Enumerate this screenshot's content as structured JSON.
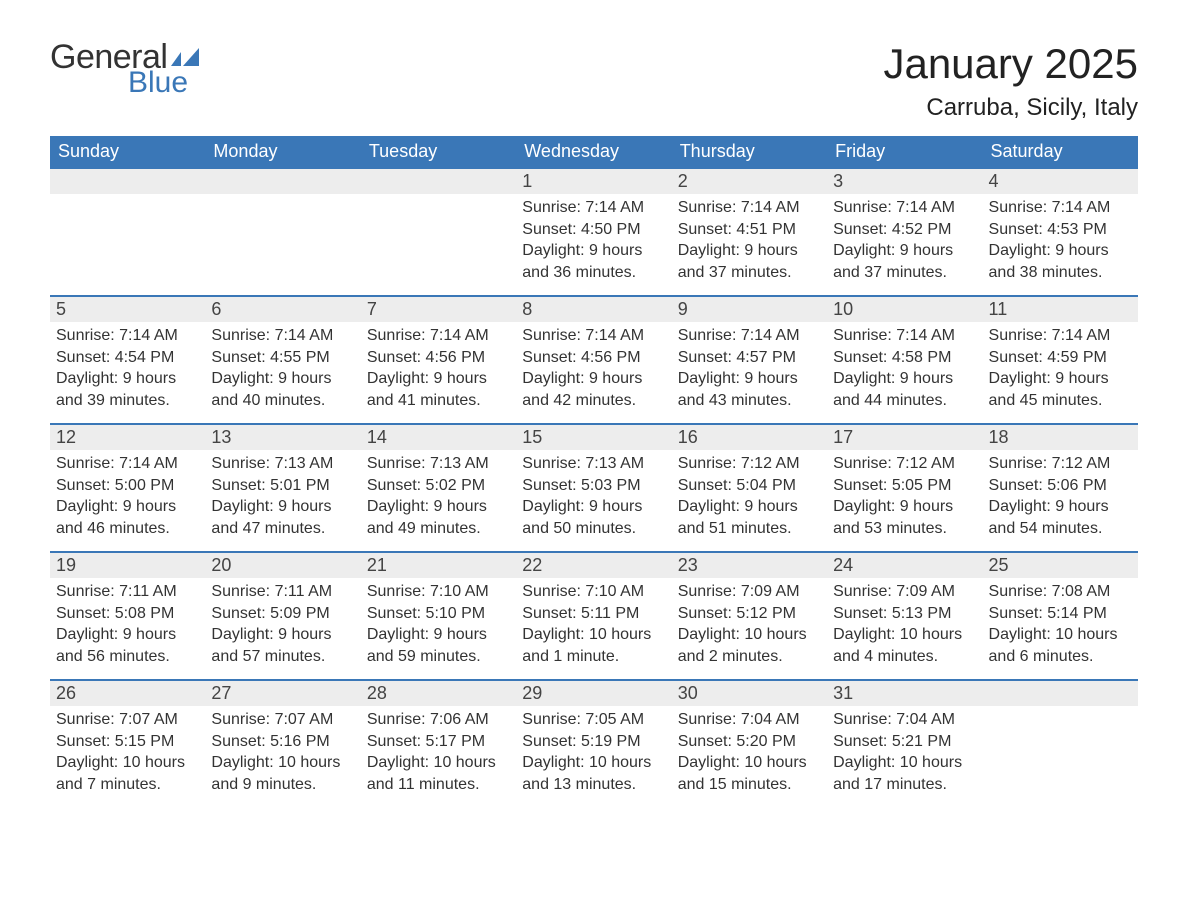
{
  "brand": {
    "word1": "General",
    "word2": "Blue"
  },
  "title": "January 2025",
  "location": "Carruba, Sicily, Italy",
  "colors": {
    "header_bg": "#3a77b7",
    "header_text": "#ffffff",
    "daynum_bg": "#ededed",
    "daynum_border": "#3a77b7",
    "body_text": "#333333",
    "page_bg": "#ffffff",
    "logo_blue": "#3a77b7"
  },
  "font": {
    "family": "Arial",
    "th_size_pt": 14,
    "body_size_pt": 12,
    "title_size_pt": 32,
    "location_size_pt": 18
  },
  "weekdays": [
    "Sunday",
    "Monday",
    "Tuesday",
    "Wednesday",
    "Thursday",
    "Friday",
    "Saturday"
  ],
  "weeks": [
    [
      null,
      null,
      null,
      {
        "n": "1",
        "sunrise": "Sunrise: 7:14 AM",
        "sunset": "Sunset: 4:50 PM",
        "dl1": "Daylight: 9 hours",
        "dl2": "and 36 minutes."
      },
      {
        "n": "2",
        "sunrise": "Sunrise: 7:14 AM",
        "sunset": "Sunset: 4:51 PM",
        "dl1": "Daylight: 9 hours",
        "dl2": "and 37 minutes."
      },
      {
        "n": "3",
        "sunrise": "Sunrise: 7:14 AM",
        "sunset": "Sunset: 4:52 PM",
        "dl1": "Daylight: 9 hours",
        "dl2": "and 37 minutes."
      },
      {
        "n": "4",
        "sunrise": "Sunrise: 7:14 AM",
        "sunset": "Sunset: 4:53 PM",
        "dl1": "Daylight: 9 hours",
        "dl2": "and 38 minutes."
      }
    ],
    [
      {
        "n": "5",
        "sunrise": "Sunrise: 7:14 AM",
        "sunset": "Sunset: 4:54 PM",
        "dl1": "Daylight: 9 hours",
        "dl2": "and 39 minutes."
      },
      {
        "n": "6",
        "sunrise": "Sunrise: 7:14 AM",
        "sunset": "Sunset: 4:55 PM",
        "dl1": "Daylight: 9 hours",
        "dl2": "and 40 minutes."
      },
      {
        "n": "7",
        "sunrise": "Sunrise: 7:14 AM",
        "sunset": "Sunset: 4:56 PM",
        "dl1": "Daylight: 9 hours",
        "dl2": "and 41 minutes."
      },
      {
        "n": "8",
        "sunrise": "Sunrise: 7:14 AM",
        "sunset": "Sunset: 4:56 PM",
        "dl1": "Daylight: 9 hours",
        "dl2": "and 42 minutes."
      },
      {
        "n": "9",
        "sunrise": "Sunrise: 7:14 AM",
        "sunset": "Sunset: 4:57 PM",
        "dl1": "Daylight: 9 hours",
        "dl2": "and 43 minutes."
      },
      {
        "n": "10",
        "sunrise": "Sunrise: 7:14 AM",
        "sunset": "Sunset: 4:58 PM",
        "dl1": "Daylight: 9 hours",
        "dl2": "and 44 minutes."
      },
      {
        "n": "11",
        "sunrise": "Sunrise: 7:14 AM",
        "sunset": "Sunset: 4:59 PM",
        "dl1": "Daylight: 9 hours",
        "dl2": "and 45 minutes."
      }
    ],
    [
      {
        "n": "12",
        "sunrise": "Sunrise: 7:14 AM",
        "sunset": "Sunset: 5:00 PM",
        "dl1": "Daylight: 9 hours",
        "dl2": "and 46 minutes."
      },
      {
        "n": "13",
        "sunrise": "Sunrise: 7:13 AM",
        "sunset": "Sunset: 5:01 PM",
        "dl1": "Daylight: 9 hours",
        "dl2": "and 47 minutes."
      },
      {
        "n": "14",
        "sunrise": "Sunrise: 7:13 AM",
        "sunset": "Sunset: 5:02 PM",
        "dl1": "Daylight: 9 hours",
        "dl2": "and 49 minutes."
      },
      {
        "n": "15",
        "sunrise": "Sunrise: 7:13 AM",
        "sunset": "Sunset: 5:03 PM",
        "dl1": "Daylight: 9 hours",
        "dl2": "and 50 minutes."
      },
      {
        "n": "16",
        "sunrise": "Sunrise: 7:12 AM",
        "sunset": "Sunset: 5:04 PM",
        "dl1": "Daylight: 9 hours",
        "dl2": "and 51 minutes."
      },
      {
        "n": "17",
        "sunrise": "Sunrise: 7:12 AM",
        "sunset": "Sunset: 5:05 PM",
        "dl1": "Daylight: 9 hours",
        "dl2": "and 53 minutes."
      },
      {
        "n": "18",
        "sunrise": "Sunrise: 7:12 AM",
        "sunset": "Sunset: 5:06 PM",
        "dl1": "Daylight: 9 hours",
        "dl2": "and 54 minutes."
      }
    ],
    [
      {
        "n": "19",
        "sunrise": "Sunrise: 7:11 AM",
        "sunset": "Sunset: 5:08 PM",
        "dl1": "Daylight: 9 hours",
        "dl2": "and 56 minutes."
      },
      {
        "n": "20",
        "sunrise": "Sunrise: 7:11 AM",
        "sunset": "Sunset: 5:09 PM",
        "dl1": "Daylight: 9 hours",
        "dl2": "and 57 minutes."
      },
      {
        "n": "21",
        "sunrise": "Sunrise: 7:10 AM",
        "sunset": "Sunset: 5:10 PM",
        "dl1": "Daylight: 9 hours",
        "dl2": "and 59 minutes."
      },
      {
        "n": "22",
        "sunrise": "Sunrise: 7:10 AM",
        "sunset": "Sunset: 5:11 PM",
        "dl1": "Daylight: 10 hours",
        "dl2": "and 1 minute."
      },
      {
        "n": "23",
        "sunrise": "Sunrise: 7:09 AM",
        "sunset": "Sunset: 5:12 PM",
        "dl1": "Daylight: 10 hours",
        "dl2": "and 2 minutes."
      },
      {
        "n": "24",
        "sunrise": "Sunrise: 7:09 AM",
        "sunset": "Sunset: 5:13 PM",
        "dl1": "Daylight: 10 hours",
        "dl2": "and 4 minutes."
      },
      {
        "n": "25",
        "sunrise": "Sunrise: 7:08 AM",
        "sunset": "Sunset: 5:14 PM",
        "dl1": "Daylight: 10 hours",
        "dl2": "and 6 minutes."
      }
    ],
    [
      {
        "n": "26",
        "sunrise": "Sunrise: 7:07 AM",
        "sunset": "Sunset: 5:15 PM",
        "dl1": "Daylight: 10 hours",
        "dl2": "and 7 minutes."
      },
      {
        "n": "27",
        "sunrise": "Sunrise: 7:07 AM",
        "sunset": "Sunset: 5:16 PM",
        "dl1": "Daylight: 10 hours",
        "dl2": "and 9 minutes."
      },
      {
        "n": "28",
        "sunrise": "Sunrise: 7:06 AM",
        "sunset": "Sunset: 5:17 PM",
        "dl1": "Daylight: 10 hours",
        "dl2": "and 11 minutes."
      },
      {
        "n": "29",
        "sunrise": "Sunrise: 7:05 AM",
        "sunset": "Sunset: 5:19 PM",
        "dl1": "Daylight: 10 hours",
        "dl2": "and 13 minutes."
      },
      {
        "n": "30",
        "sunrise": "Sunrise: 7:04 AM",
        "sunset": "Sunset: 5:20 PM",
        "dl1": "Daylight: 10 hours",
        "dl2": "and 15 minutes."
      },
      {
        "n": "31",
        "sunrise": "Sunrise: 7:04 AM",
        "sunset": "Sunset: 5:21 PM",
        "dl1": "Daylight: 10 hours",
        "dl2": "and 17 minutes."
      },
      null
    ]
  ]
}
